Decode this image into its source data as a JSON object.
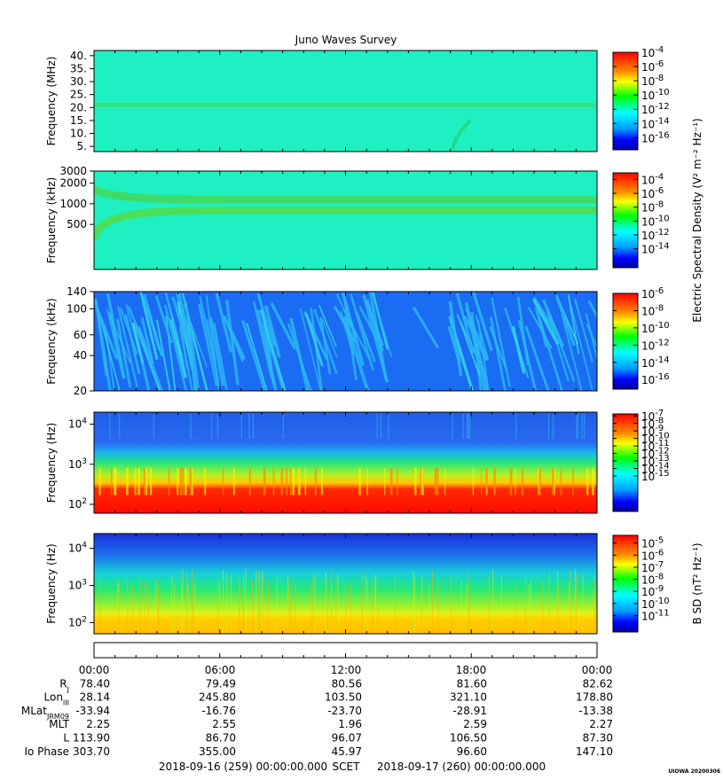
{
  "title": "Juno Waves Survey",
  "footer_stamp": "UIOWA 20200306",
  "chart_data": [
    {
      "type": "heatmap",
      "id": "p1",
      "ylabel": "Frequency (MHz)",
      "yscale": "linear",
      "ylim": [
        3,
        42
      ],
      "yticks": [
        {
          "v": 5,
          "l": "5."
        },
        {
          "v": 10,
          "l": "10."
        },
        {
          "v": 15,
          "l": "15."
        },
        {
          "v": 20,
          "l": "20."
        },
        {
          "v": 25,
          "l": "25."
        },
        {
          "v": 30,
          "l": "30."
        },
        {
          "v": 35,
          "l": "35."
        },
        {
          "v": 40,
          "l": "40."
        }
      ],
      "colorbar_ticks": [
        {
          "e": -4,
          "v": 0
        },
        {
          "e": -6,
          "v": 0.146
        },
        {
          "e": -8,
          "v": 0.292
        },
        {
          "e": -10,
          "v": 0.438
        },
        {
          "e": -12,
          "v": 0.584
        },
        {
          "e": -14,
          "v": 0.73
        },
        {
          "e": -16,
          "v": 0.876
        }
      ],
      "colorbar_label": "",
      "background_color": "#1ff0c2",
      "features": [
        {
          "kind": "band",
          "center": 21,
          "width": 1.6,
          "color": "#34e07a"
        },
        {
          "kind": "arc",
          "color": "#22d88a"
        }
      ]
    },
    {
      "type": "heatmap",
      "id": "p2",
      "ylabel": "Frequency (kHz)",
      "yscale": "log",
      "ylim": [
        110,
        3000
      ],
      "yticks": [
        {
          "v": 500,
          "l": "500"
        },
        {
          "v": 1000,
          "l": "1000"
        },
        {
          "v": 2000,
          "l": "2000"
        },
        {
          "v": 3000,
          "l": "3000"
        }
      ],
      "colorbar_ticks": [
        {
          "e": -4,
          "v": 0.07
        },
        {
          "e": -6,
          "v": 0.216
        },
        {
          "e": -8,
          "v": 0.362
        },
        {
          "e": -10,
          "v": 0.508
        },
        {
          "e": -12,
          "v": 0.654
        },
        {
          "e": -14,
          "v": 0.8
        }
      ],
      "colorbar_label": "Electric Spectral Density (V² m⁻² Hz⁻¹)",
      "background_color": "#1ff0c2",
      "features": [
        {
          "kind": "band",
          "center": 1150,
          "color": "#3ddc6a"
        },
        {
          "kind": "band",
          "center": 800,
          "color": "#49df5c"
        }
      ]
    },
    {
      "type": "heatmap",
      "id": "p3",
      "ylabel": "Frequency (kHz)",
      "yscale": "log",
      "ylim": [
        20,
        140
      ],
      "yticks": [
        {
          "v": 20,
          "l": "20"
        },
        {
          "v": 40,
          "l": "40"
        },
        {
          "v": 60,
          "l": "60"
        },
        {
          "v": 100,
          "l": "100"
        },
        {
          "v": 140,
          "l": "140"
        }
      ],
      "colorbar_ticks": [
        {
          "e": -6,
          "v": 0
        },
        {
          "e": -8,
          "v": 0.18
        },
        {
          "e": -10,
          "v": 0.36
        },
        {
          "e": -12,
          "v": 0.54
        },
        {
          "e": -14,
          "v": 0.72
        },
        {
          "e": -16,
          "v": 0.9
        }
      ],
      "colorbar_label": "",
      "background_color": "#1a6cf2",
      "features": [
        {
          "kind": "streaks",
          "color": "#2cb6f6"
        }
      ]
    },
    {
      "type": "heatmap",
      "id": "p4",
      "ylabel": "Frequency (Hz)",
      "yscale": "log",
      "ylim": [
        60,
        20000
      ],
      "yticks": [
        {
          "v": 100,
          "l": "10",
          "sup": "2"
        },
        {
          "v": 1000,
          "l": "10",
          "sup": "3"
        },
        {
          "v": 10000,
          "l": "10",
          "sup": "4"
        }
      ],
      "colorbar_ticks": [
        {
          "e": -7,
          "v": 0.02
        },
        {
          "e": -8,
          "v": 0.097
        },
        {
          "e": -9,
          "v": 0.174
        },
        {
          "e": -10,
          "v": 0.251
        },
        {
          "e": -11,
          "v": 0.328
        },
        {
          "e": -12,
          "v": 0.405
        },
        {
          "e": -13,
          "v": 0.482
        },
        {
          "e": -14,
          "v": 0.559
        },
        {
          "e": -15,
          "v": 0.636
        }
      ],
      "colorbar_label": "",
      "background_color": "#1f5fe8",
      "features": [
        {
          "kind": "gradient"
        }
      ]
    },
    {
      "type": "heatmap",
      "id": "p5",
      "ylabel": "Frequency (Hz)",
      "yscale": "log",
      "ylim": [
        50,
        25000
      ],
      "yticks": [
        {
          "v": 100,
          "l": "10",
          "sup": "2"
        },
        {
          "v": 1000,
          "l": "10",
          "sup": "3"
        },
        {
          "v": 10000,
          "l": "10",
          "sup": "4"
        }
      ],
      "colorbar_ticks": [
        {
          "e": -5,
          "v": 0.08
        },
        {
          "e": -6,
          "v": 0.205
        },
        {
          "e": -7,
          "v": 0.33
        },
        {
          "e": -8,
          "v": 0.455
        },
        {
          "e": -9,
          "v": 0.58
        },
        {
          "e": -10,
          "v": 0.705
        },
        {
          "e": -11,
          "v": 0.83
        }
      ],
      "colorbar_label": "B SD (nT² Hz⁻¹)",
      "background_color": "#1a4fe0",
      "features": [
        {
          "kind": "gradient"
        }
      ]
    }
  ],
  "ephemeris": {
    "times": [
      "00:00",
      "06:00",
      "12:00",
      "18:00",
      "00:00"
    ],
    "rows": [
      {
        "label": "R",
        "sub": "J",
        "values": [
          "78.40",
          "79.49",
          "80.56",
          "81.60",
          "82.62"
        ]
      },
      {
        "label": "Lon",
        "sub": "III",
        "values": [
          "28.14",
          "245.80",
          "103.50",
          "321.10",
          "178.80"
        ]
      },
      {
        "label": "MLat",
        "sub": "JRM09",
        "values": [
          "-33.94",
          "-16.76",
          "-23.70",
          "-28.91",
          "-13.38"
        ]
      },
      {
        "label": "MLT",
        "sub": "",
        "values": [
          "2.25",
          "2.55",
          "1.96",
          "2.59",
          "2.27"
        ]
      },
      {
        "label": "L",
        "sub": "",
        "values": [
          "113.90",
          "86.70",
          "96.07",
          "106.50",
          "87.30"
        ]
      },
      {
        "label": "Io Phase",
        "sub": "",
        "values": [
          "303.70",
          "355.00",
          "45.97",
          "96.60",
          "147.10"
        ]
      }
    ],
    "start": "2018-09-16 (259) 00:00:00.000",
    "scet": "SCET",
    "end": "2018-09-17 (260) 00:00:00.000"
  }
}
